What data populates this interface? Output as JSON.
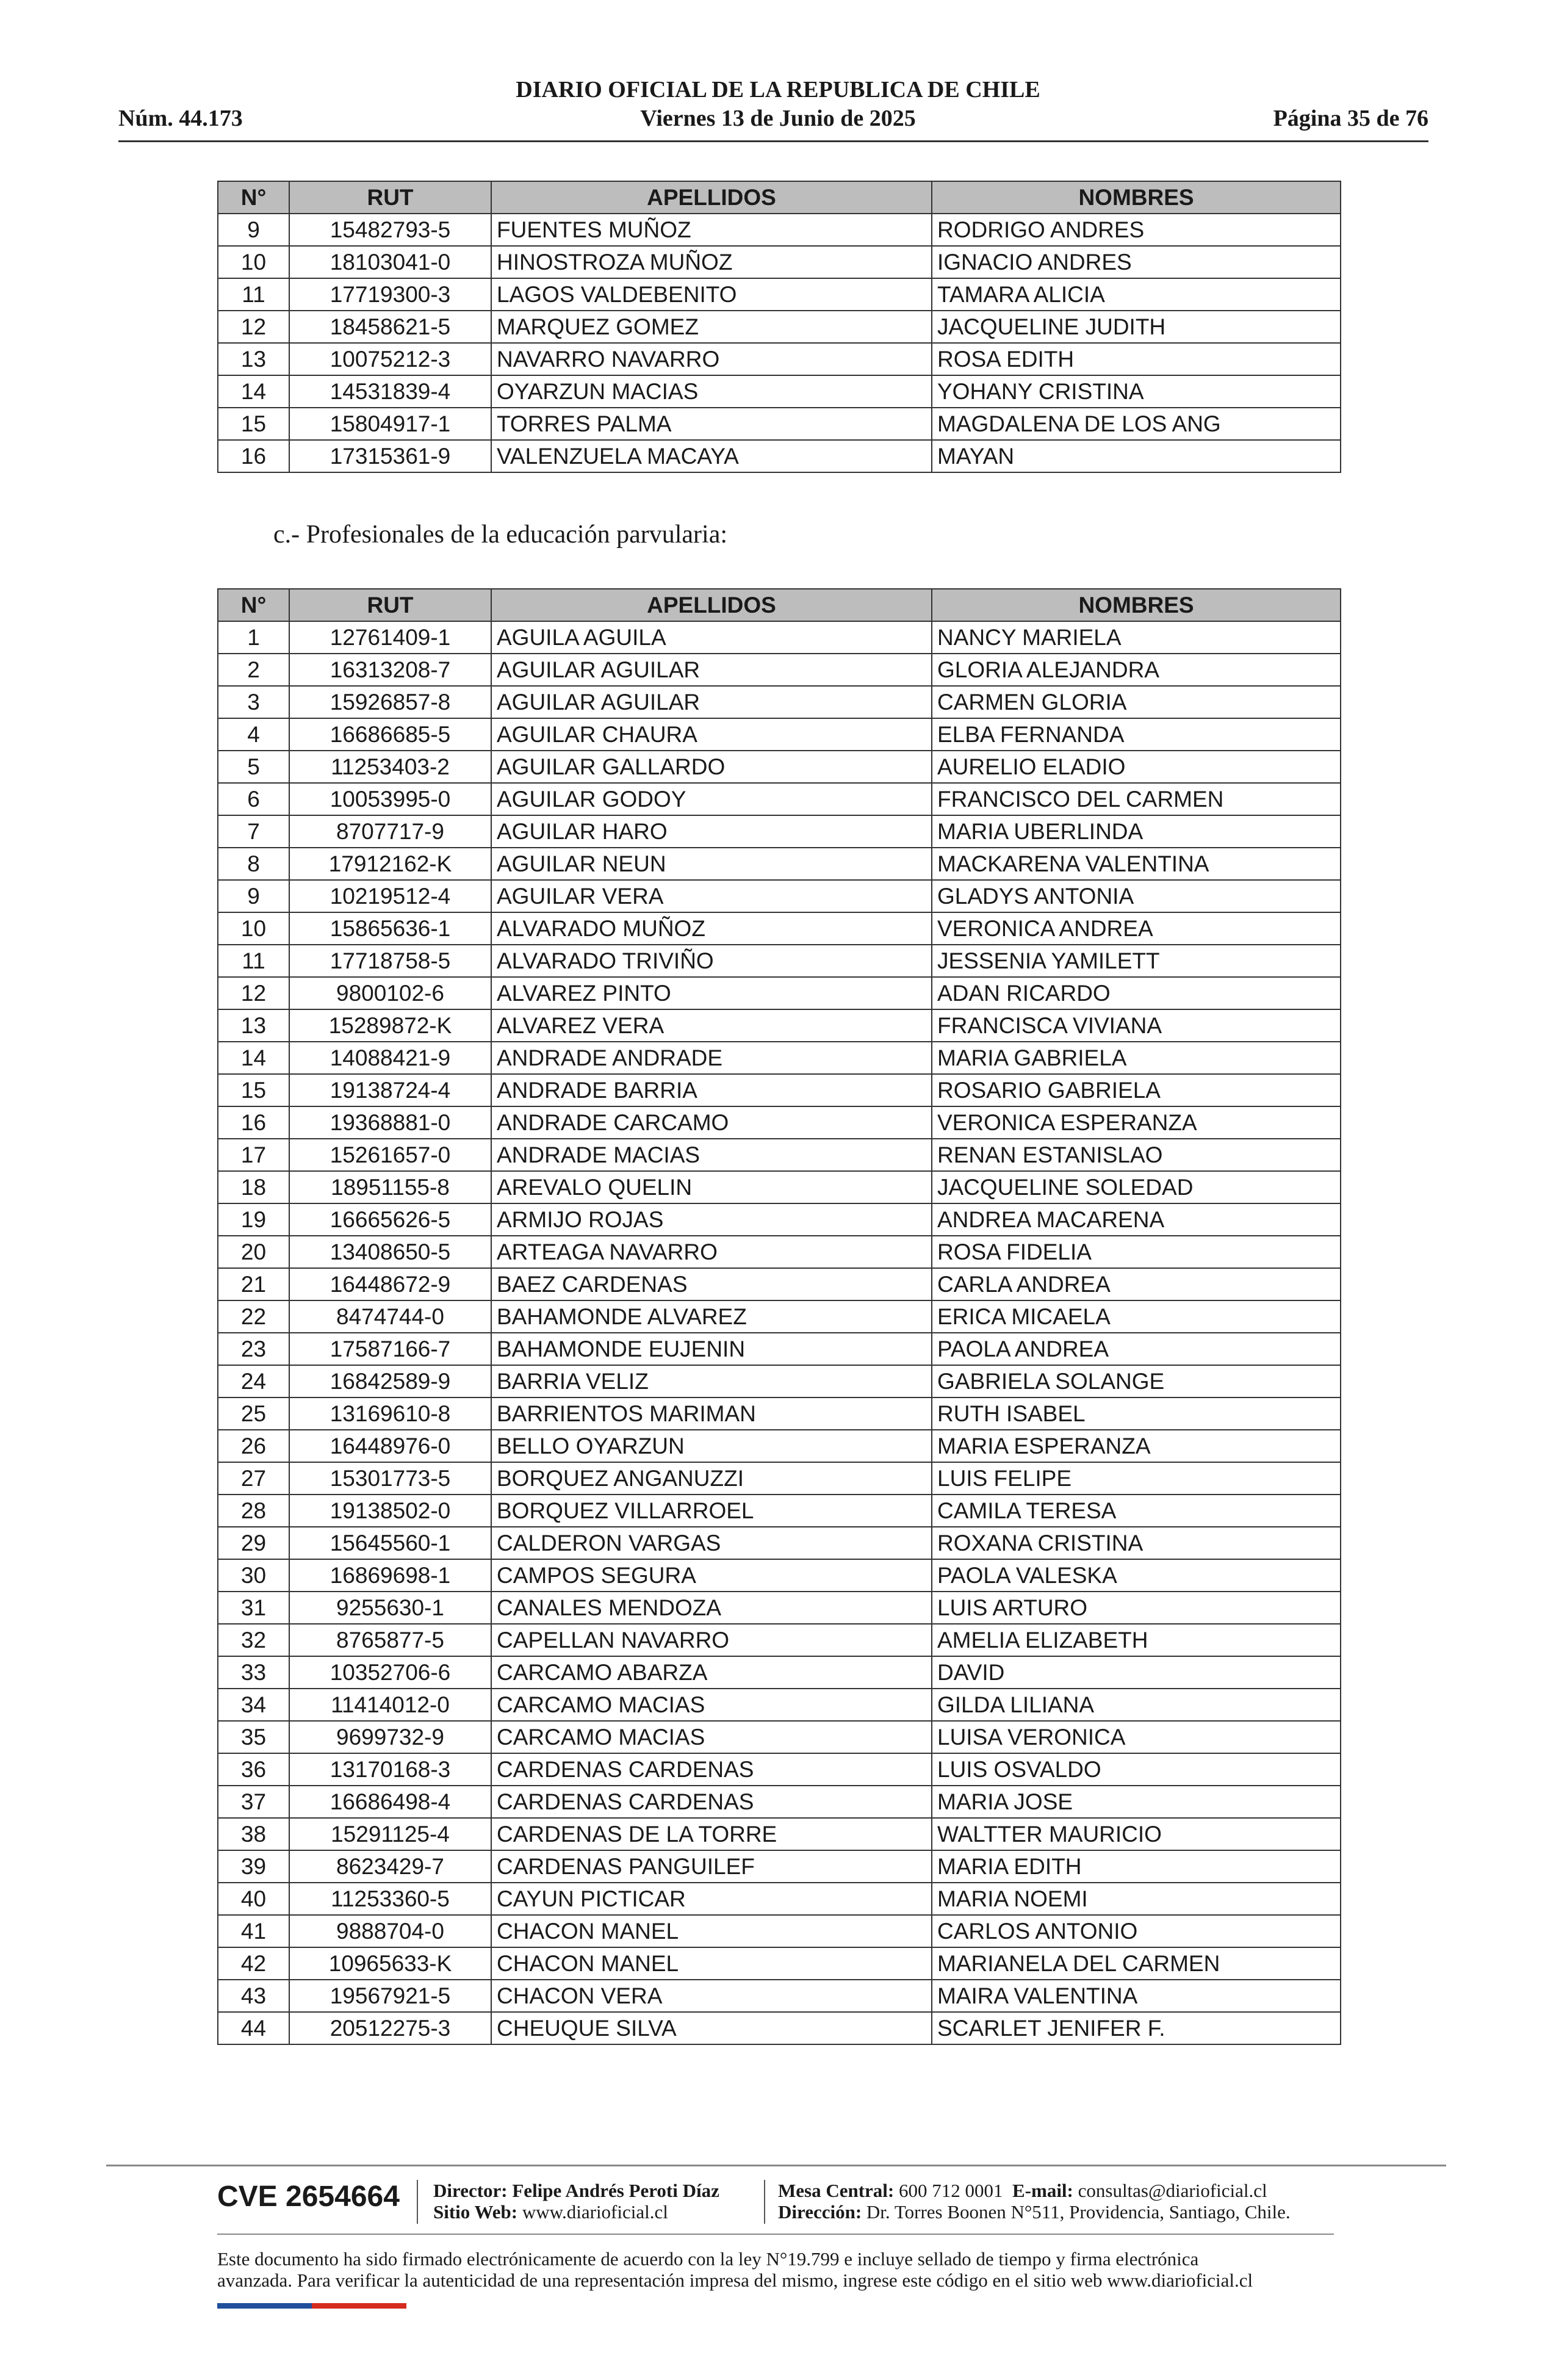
{
  "header": {
    "title": "DIARIO OFICIAL DE LA REPUBLICA DE CHILE",
    "number": "Núm. 44.173",
    "date": "Viernes 13 de Junio de 2025",
    "page": "Página 35 de 76"
  },
  "table1": {
    "columns": [
      "N°",
      "RUT",
      "APELLIDOS",
      "NOMBRES"
    ],
    "rows": [
      [
        "9",
        "15482793-5",
        "FUENTES MUÑOZ",
        "RODRIGO ANDRES"
      ],
      [
        "10",
        "18103041-0",
        "HINOSTROZA MUÑOZ",
        "IGNACIO ANDRES"
      ],
      [
        "11",
        "17719300-3",
        "LAGOS VALDEBENITO",
        "TAMARA ALICIA"
      ],
      [
        "12",
        "18458621-5",
        "MARQUEZ GOMEZ",
        "JACQUELINE JUDITH"
      ],
      [
        "13",
        "10075212-3",
        "NAVARRO NAVARRO",
        "ROSA EDITH"
      ],
      [
        "14",
        "14531839-4",
        "OYARZUN MACIAS",
        "YOHANY CRISTINA"
      ],
      [
        "15",
        "15804917-1",
        "TORRES PALMA",
        "MAGDALENA DE LOS ANG"
      ],
      [
        "16",
        "17315361-9",
        "VALENZUELA MACAYA",
        "MAYAN"
      ]
    ]
  },
  "section_title": "c.- Profesionales de la educación parvularia:",
  "table2": {
    "columns": [
      "N°",
      "RUT",
      "APELLIDOS",
      "NOMBRES"
    ],
    "rows": [
      [
        "1",
        "12761409-1",
        "AGUILA AGUILA",
        "NANCY MARIELA"
      ],
      [
        "2",
        "16313208-7",
        "AGUILAR AGUILAR",
        "GLORIA ALEJANDRA"
      ],
      [
        "3",
        "15926857-8",
        "AGUILAR AGUILAR",
        "CARMEN GLORIA"
      ],
      [
        "4",
        "16686685-5",
        "AGUILAR CHAURA",
        "ELBA FERNANDA"
      ],
      [
        "5",
        "11253403-2",
        "AGUILAR GALLARDO",
        "AURELIO ELADIO"
      ],
      [
        "6",
        "10053995-0",
        "AGUILAR GODOY",
        "FRANCISCO DEL CARMEN"
      ],
      [
        "7",
        "8707717-9",
        "AGUILAR HARO",
        "MARIA UBERLINDA"
      ],
      [
        "8",
        "17912162-K",
        "AGUILAR NEUN",
        "MACKARENA VALENTINA"
      ],
      [
        "9",
        "10219512-4",
        "AGUILAR VERA",
        "GLADYS ANTONIA"
      ],
      [
        "10",
        "15865636-1",
        "ALVARADO MUÑOZ",
        "VERONICA ANDREA"
      ],
      [
        "11",
        "17718758-5",
        "ALVARADO TRIVIÑO",
        "JESSENIA YAMILETT"
      ],
      [
        "12",
        "9800102-6",
        "ALVAREZ PINTO",
        "ADAN RICARDO"
      ],
      [
        "13",
        "15289872-K",
        "ALVAREZ VERA",
        "FRANCISCA VIVIANA"
      ],
      [
        "14",
        "14088421-9",
        "ANDRADE ANDRADE",
        "MARIA GABRIELA"
      ],
      [
        "15",
        "19138724-4",
        "ANDRADE BARRIA",
        "ROSARIO GABRIELA"
      ],
      [
        "16",
        "19368881-0",
        "ANDRADE CARCAMO",
        "VERONICA ESPERANZA"
      ],
      [
        "17",
        "15261657-0",
        "ANDRADE MACIAS",
        "RENAN ESTANISLAO"
      ],
      [
        "18",
        "18951155-8",
        "AREVALO QUELIN",
        "JACQUELINE SOLEDAD"
      ],
      [
        "19",
        "16665626-5",
        "ARMIJO ROJAS",
        "ANDREA MACARENA"
      ],
      [
        "20",
        "13408650-5",
        "ARTEAGA NAVARRO",
        "ROSA FIDELIA"
      ],
      [
        "21",
        "16448672-9",
        "BAEZ CARDENAS",
        "CARLA ANDREA"
      ],
      [
        "22",
        "8474744-0",
        "BAHAMONDE ALVAREZ",
        "ERICA MICAELA"
      ],
      [
        "23",
        "17587166-7",
        "BAHAMONDE EUJENIN",
        "PAOLA ANDREA"
      ],
      [
        "24",
        "16842589-9",
        "BARRIA VELIZ",
        "GABRIELA SOLANGE"
      ],
      [
        "25",
        "13169610-8",
        "BARRIENTOS MARIMAN",
        "RUTH ISABEL"
      ],
      [
        "26",
        "16448976-0",
        "BELLO OYARZUN",
        "MARIA ESPERANZA"
      ],
      [
        "27",
        "15301773-5",
        "BORQUEZ ANGANUZZI",
        "LUIS FELIPE"
      ],
      [
        "28",
        "19138502-0",
        "BORQUEZ VILLARROEL",
        "CAMILA TERESA"
      ],
      [
        "29",
        "15645560-1",
        "CALDERON VARGAS",
        "ROXANA CRISTINA"
      ],
      [
        "30",
        "16869698-1",
        "CAMPOS SEGURA",
        "PAOLA VALESKA"
      ],
      [
        "31",
        "9255630-1",
        "CANALES MENDOZA",
        "LUIS ARTURO"
      ],
      [
        "32",
        "8765877-5",
        "CAPELLAN NAVARRO",
        "AMELIA ELIZABETH"
      ],
      [
        "33",
        "10352706-6",
        "CARCAMO ABARZA",
        "DAVID"
      ],
      [
        "34",
        "11414012-0",
        "CARCAMO MACIAS",
        "GILDA LILIANA"
      ],
      [
        "35",
        "9699732-9",
        "CARCAMO MACIAS",
        "LUISA VERONICA"
      ],
      [
        "36",
        "13170168-3",
        "CARDENAS CARDENAS",
        "LUIS OSVALDO"
      ],
      [
        "37",
        "16686498-4",
        "CARDENAS CARDENAS",
        "MARIA JOSE"
      ],
      [
        "38",
        "15291125-4",
        "CARDENAS DE LA TORRE",
        "WALTTER MAURICIO"
      ],
      [
        "39",
        "8623429-7",
        "CARDENAS PANGUILEF",
        "MARIA EDITH"
      ],
      [
        "40",
        "11253360-5",
        "CAYUN PICTICAR",
        "MARIA NOEMI"
      ],
      [
        "41",
        "9888704-0",
        "CHACON MANEL",
        "CARLOS ANTONIO"
      ],
      [
        "42",
        "10965633-K",
        "CHACON MANEL",
        "MARIANELA DEL CARMEN"
      ],
      [
        "43",
        "19567921-5",
        "CHACON VERA",
        "MAIRA VALENTINA"
      ],
      [
        "44",
        "20512275-3",
        "CHEUQUE SILVA",
        "SCARLET JENIFER F."
      ]
    ]
  },
  "footer": {
    "cve": "CVE 2654664",
    "director_label": "Director:",
    "director": "Felipe Andrés Peroti Díaz",
    "web_label": "Sitio Web:",
    "web": "www.diarioficial.cl",
    "phone_label": "Mesa Central:",
    "phone": "600 712 0001",
    "email_label": "E-mail:",
    "email": "consultas@diarioficial.cl",
    "address_label": "Dirección:",
    "address": "Dr. Torres Boonen N°511, Providencia, Santiago, Chile.",
    "disclaimer": [
      "Este documento ha sido firmado electrónicamente de acuerdo con la ley N°19.799 e incluye sellado de tiempo y firma electrónica",
      "avanzada. Para verificar la autenticidad de una representación impresa del mismo, ingrese este código en el sitio web www.diarioficial.cl"
    ]
  }
}
